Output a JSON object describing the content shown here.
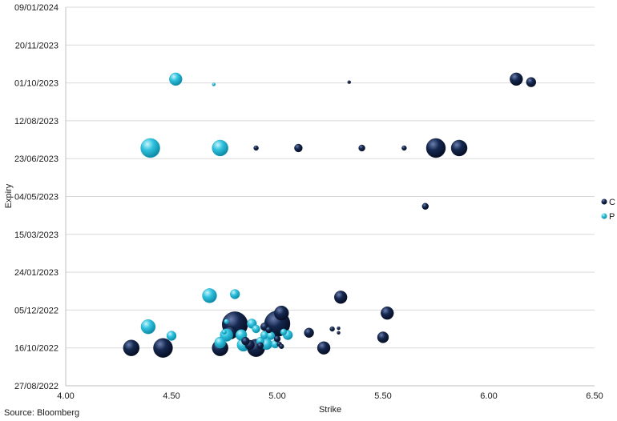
{
  "chart_data": {
    "type": "scatter",
    "subtype": "bubble",
    "title": "",
    "xlabel": "Strike",
    "ylabel": "Expiry",
    "xlim": [
      4.0,
      6.5
    ],
    "x_ticks": [
      "4.00",
      "4.50",
      "5.00",
      "5.50",
      "6.00",
      "6.50"
    ],
    "ylim": [
      "2022-08-27",
      "2024-01-09"
    ],
    "y_ticks": [
      {
        "date": "2022-08-27",
        "label": "27/08/2022"
      },
      {
        "date": "2022-10-16",
        "label": "16/10/2022"
      },
      {
        "date": "2022-12-05",
        "label": "05/12/2022"
      },
      {
        "date": "2023-01-24",
        "label": "24/01/2023"
      },
      {
        "date": "2023-03-15",
        "label": "15/03/2023"
      },
      {
        "date": "2023-05-04",
        "label": "04/05/2023"
      },
      {
        "date": "2023-06-23",
        "label": "23/06/2023"
      },
      {
        "date": "2023-08-12",
        "label": "12/08/2023"
      },
      {
        "date": "2023-10-01",
        "label": "01/10/2023"
      },
      {
        "date": "2023-11-20",
        "label": "20/11/2023"
      },
      {
        "date": "2024-01-09",
        "label": "09/01/2024"
      }
    ],
    "grid": "horizontal",
    "legend_position": "right",
    "source": "Source: Bloomberg",
    "series": [
      {
        "name": "C",
        "color": "#152850",
        "points": [
          {
            "x": 4.31,
            "date": "2022-10-16",
            "size": 10
          },
          {
            "x": 4.46,
            "date": "2022-10-16",
            "size": 12
          },
          {
            "x": 4.73,
            "date": "2022-10-16",
            "size": 10
          },
          {
            "x": 4.78,
            "date": "2022-11-05",
            "size": 8
          },
          {
            "x": 4.8,
            "date": "2022-11-16",
            "size": 16
          },
          {
            "x": 4.85,
            "date": "2022-10-25",
            "size": 5
          },
          {
            "x": 4.87,
            "date": "2022-10-20",
            "size": 6
          },
          {
            "x": 4.9,
            "date": "2022-10-16",
            "size": 11
          },
          {
            "x": 4.92,
            "date": "2022-10-19",
            "size": 4
          },
          {
            "x": 4.94,
            "date": "2022-11-13",
            "size": 5
          },
          {
            "x": 4.96,
            "date": "2022-11-09",
            "size": 4
          },
          {
            "x": 5.0,
            "date": "2022-11-17",
            "size": 16
          },
          {
            "x": 5.02,
            "date": "2022-12-01",
            "size": 9
          },
          {
            "x": 5.0,
            "date": "2022-10-28",
            "size": 4
          },
          {
            "x": 5.01,
            "date": "2022-10-21",
            "size": 3
          },
          {
            "x": 5.02,
            "date": "2022-10-18",
            "size": 3
          },
          {
            "x": 5.15,
            "date": "2022-11-05",
            "size": 6
          },
          {
            "x": 5.22,
            "date": "2022-10-16",
            "size": 8
          },
          {
            "x": 5.26,
            "date": "2022-11-10",
            "size": 3
          },
          {
            "x": 5.29,
            "date": "2022-11-11",
            "size": 2
          },
          {
            "x": 5.29,
            "date": "2022-11-05",
            "size": 2
          },
          {
            "x": 5.3,
            "date": "2022-12-22",
            "size": 8
          },
          {
            "x": 5.5,
            "date": "2022-10-30",
            "size": 7
          },
          {
            "x": 5.52,
            "date": "2022-12-01",
            "size": 8
          },
          {
            "x": 4.9,
            "date": "2023-07-07",
            "size": 3
          },
          {
            "x": 5.1,
            "date": "2023-07-07",
            "size": 5
          },
          {
            "x": 5.4,
            "date": "2023-07-07",
            "size": 4
          },
          {
            "x": 5.6,
            "date": "2023-07-07",
            "size": 3
          },
          {
            "x": 5.75,
            "date": "2023-07-07",
            "size": 12
          },
          {
            "x": 5.86,
            "date": "2023-07-07",
            "size": 10
          },
          {
            "x": 5.7,
            "date": "2023-04-21",
            "size": 4
          },
          {
            "x": 5.34,
            "date": "2023-10-02",
            "size": 2
          },
          {
            "x": 6.13,
            "date": "2023-10-06",
            "size": 8
          },
          {
            "x": 6.2,
            "date": "2023-10-02",
            "size": 6
          }
        ]
      },
      {
        "name": "P",
        "color": "#2fc2de",
        "points": [
          {
            "x": 4.39,
            "date": "2022-11-13",
            "size": 9
          },
          {
            "x": 4.5,
            "date": "2022-11-01",
            "size": 6
          },
          {
            "x": 4.68,
            "date": "2022-12-24",
            "size": 9
          },
          {
            "x": 4.73,
            "date": "2022-10-23",
            "size": 7
          },
          {
            "x": 4.75,
            "date": "2022-11-06",
            "size": 3
          },
          {
            "x": 4.76,
            "date": "2022-11-20",
            "size": 3
          },
          {
            "x": 4.76,
            "date": "2022-11-02",
            "size": 8
          },
          {
            "x": 4.8,
            "date": "2022-12-26",
            "size": 6
          },
          {
            "x": 4.83,
            "date": "2022-11-02",
            "size": 7
          },
          {
            "x": 4.84,
            "date": "2022-10-20",
            "size": 8
          },
          {
            "x": 4.88,
            "date": "2022-11-17",
            "size": 6
          },
          {
            "x": 4.9,
            "date": "2022-11-10",
            "size": 5
          },
          {
            "x": 4.92,
            "date": "2022-10-25",
            "size": 5
          },
          {
            "x": 4.94,
            "date": "2022-11-02",
            "size": 5
          },
          {
            "x": 4.95,
            "date": "2022-10-21",
            "size": 7
          },
          {
            "x": 4.97,
            "date": "2022-11-01",
            "size": 5
          },
          {
            "x": 4.99,
            "date": "2022-10-21",
            "size": 5
          },
          {
            "x": 5.03,
            "date": "2022-11-06",
            "size": 4
          },
          {
            "x": 5.05,
            "date": "2022-11-02",
            "size": 6
          },
          {
            "x": 4.4,
            "date": "2023-07-07",
            "size": 12
          },
          {
            "x": 4.73,
            "date": "2023-07-07",
            "size": 10
          },
          {
            "x": 4.52,
            "date": "2023-10-06",
            "size": 8
          },
          {
            "x": 4.7,
            "date": "2023-09-29",
            "size": 2
          }
        ]
      }
    ]
  }
}
